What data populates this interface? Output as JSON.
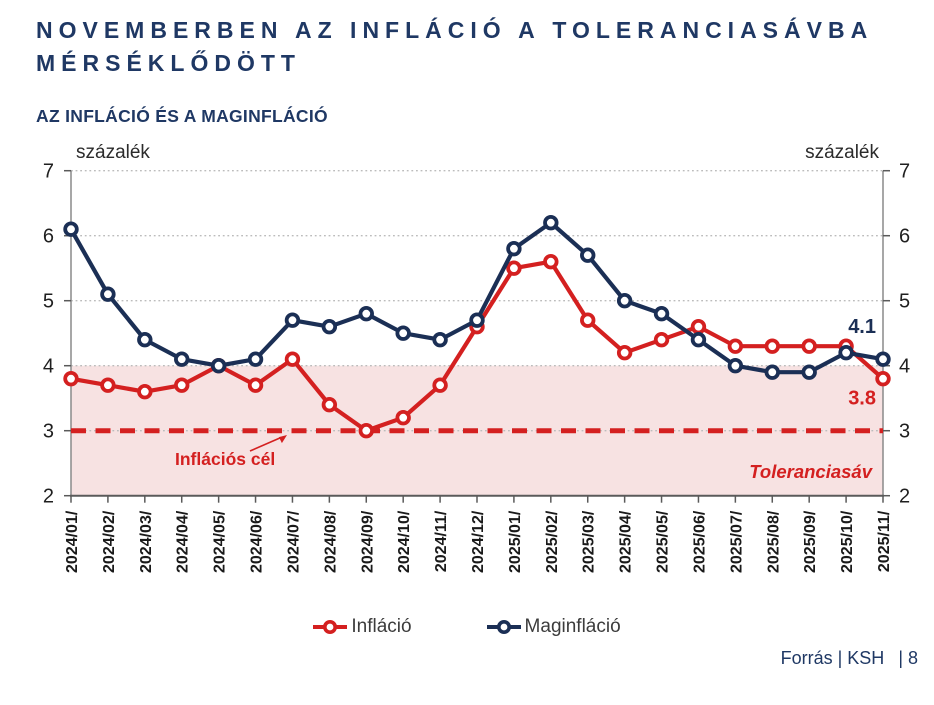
{
  "header": {
    "title": "NOVEMBERBEN AZ INFLÁCIÓ A TOLERANCIASÁVBA MÉRSÉKLŐDÖTT",
    "subtitle": "AZ INFLÁCIÓ ÉS A MAGINFLÁCIÓ"
  },
  "chart_data": {
    "type": "line",
    "title": "Az infláció és a maginfláció",
    "unit_label": "százalék",
    "ylim": [
      2,
      7
    ],
    "yticks": [
      7,
      6,
      5,
      4,
      3,
      2
    ],
    "grid": "dotted-horizontal",
    "legend_position": "bottom",
    "categories": [
      "2024/01/",
      "2024/02/",
      "2024/03/",
      "2024/04/",
      "2024/05/",
      "2024/06/",
      "2024/07/",
      "2024/08/",
      "2024/09/",
      "2024/10/",
      "2024/11/",
      "2024/12/",
      "2025/01/",
      "2025/02/",
      "2025/03/",
      "2025/04/",
      "2025/05/",
      "2025/06/",
      "2025/07/",
      "2025/08/",
      "2025/09/",
      "2025/10/",
      "2025/11/"
    ],
    "series": [
      {
        "name": "Infláció",
        "color": "#d42020",
        "values": [
          3.8,
          3.7,
          3.6,
          3.7,
          4.0,
          3.7,
          4.1,
          3.4,
          3.0,
          3.2,
          3.7,
          4.6,
          5.5,
          5.6,
          4.7,
          4.2,
          4.4,
          4.6,
          4.3,
          4.3,
          4.3,
          4.3,
          3.8
        ],
        "end_label": "3.8"
      },
      {
        "name": "Maginfláció",
        "color": "#1b2f55",
        "values": [
          6.1,
          5.1,
          4.4,
          4.1,
          4.0,
          4.1,
          4.7,
          4.6,
          4.8,
          4.5,
          4.4,
          4.7,
          5.8,
          6.2,
          5.7,
          5.0,
          4.8,
          4.4,
          4.0,
          3.9,
          3.9,
          4.2,
          4.1
        ],
        "end_label": "4.1"
      }
    ],
    "tolerance_band": {
      "from": 2,
      "to": 4,
      "color": "#f7e2e2",
      "label": "Toleranciasáv",
      "label_color": "#d42020"
    },
    "target_line": {
      "value": 3,
      "style": "dashed",
      "color": "#d42020",
      "label": "Inflációs cél"
    }
  },
  "footer": {
    "source": "Forrás | KSH",
    "page": "| 8"
  }
}
